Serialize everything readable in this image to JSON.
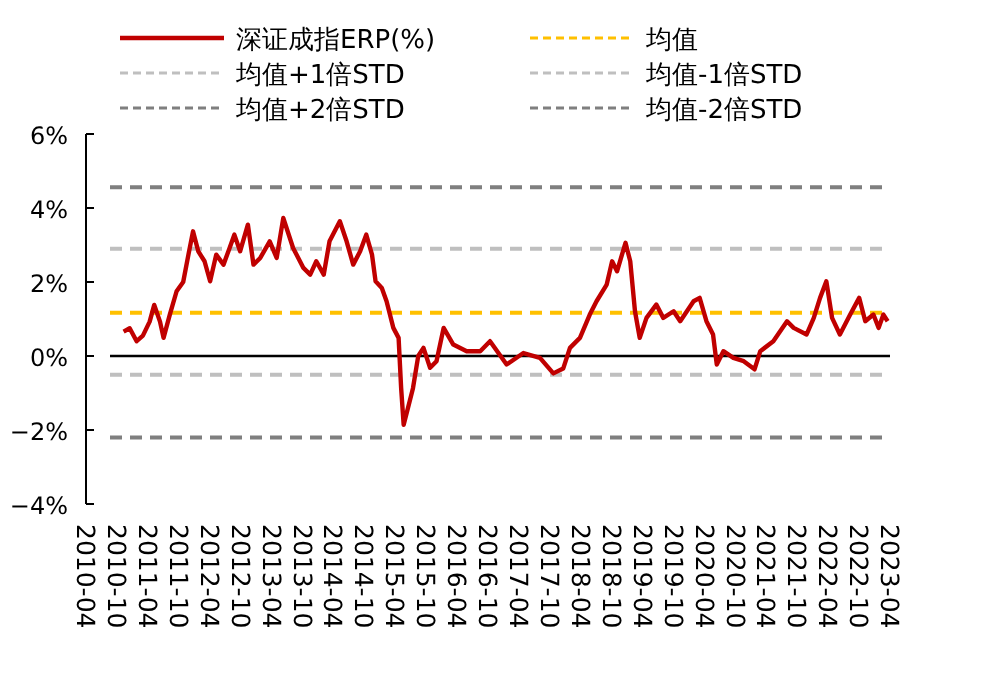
{
  "chart_data": {
    "type": "line",
    "legend": "top",
    "xlim": [
      "2010-04",
      "2023-04"
    ],
    "xticks": [
      "2010-04",
      "2010-10",
      "2011-04",
      "2011-10",
      "2012-04",
      "2012-10",
      "2013-04",
      "2013-10",
      "2014-04",
      "2014-10",
      "2015-04",
      "2015-10",
      "2016-04",
      "2016-10",
      "2017-04",
      "2017-10",
      "2018-04",
      "2018-10",
      "2019-04",
      "2019-10",
      "2020-04",
      "2020-10",
      "2021-04",
      "2021-10",
      "2022-04",
      "2022-10",
      "2023-04"
    ],
    "ylim": [
      -4,
      6
    ],
    "yticks": [
      {
        "value": -4,
        "label": "−4%"
      },
      {
        "value": -2,
        "label": "−2%"
      },
      {
        "value": 0,
        "label": "0%"
      },
      {
        "value": 2,
        "label": "2%"
      },
      {
        "value": 4,
        "label": "4%"
      },
      {
        "value": 6,
        "label": "6%"
      }
    ],
    "ref_lines": [
      {
        "axis": "y",
        "value": 1.17,
        "label": "均值",
        "color": "#ffc000",
        "line_style": "dashed"
      },
      {
        "axis": "y",
        "value": 2.9,
        "label": "均值+1倍STD",
        "color": "#bfbfbf",
        "line_style": "dashed"
      },
      {
        "axis": "y",
        "value": -0.51,
        "label": "均值-1倍STD",
        "color": "#bfbfbf",
        "line_style": "dashed"
      },
      {
        "axis": "y",
        "value": 4.56,
        "label": "均值+2倍STD",
        "color": "#7f7f7f",
        "line_style": "dashed"
      },
      {
        "axis": "y",
        "value": -2.2,
        "label": "均值-2倍STD",
        "color": "#7f7f7f",
        "line_style": "dashed"
      },
      {
        "axis": "y",
        "value": 0,
        "color": "#000000",
        "line_style": "solid"
      }
    ],
    "series": [
      {
        "name": "深证成指ERP(%)",
        "color": "#c00000",
        "x": [
          "2010-11-09",
          "2010-12-15",
          "2011-01-25",
          "2011-03-03",
          "2011-04-12",
          "2011-05-09",
          "2011-06-12",
          "2011-07-03",
          "2011-08-09",
          "2011-09-18",
          "2011-10-27",
          "2011-11-27",
          "2011-12-24",
          "2012-01-24",
          "2012-03-01",
          "2012-04-03",
          "2012-05-09",
          "2012-06-21",
          "2012-07-27",
          "2012-08-24",
          "2012-09-27",
          "2012-11-12",
          "2012-12-15",
          "2013-01-24",
          "2013-03-21",
          "2013-05-01",
          "2013-06-09",
          "2013-08-06",
          "2013-10-06",
          "2013-11-15",
          "2013-12-21",
          "2014-02-03",
          "2014-03-09",
          "2014-05-09",
          "2014-06-18",
          "2014-07-27",
          "2014-09-06",
          "2014-10-12",
          "2014-11-15",
          "2014-12-06",
          "2015-01-12",
          "2015-02-09",
          "2015-03-21",
          "2015-04-21",
          "2015-05-06",
          "2015-05-21",
          "2015-06-15",
          "2015-07-15",
          "2015-08-15",
          "2015-09-15",
          "2015-10-24",
          "2015-12-01",
          "2016-01-12",
          "2016-03-09",
          "2016-05-27",
          "2016-08-15",
          "2016-10-12",
          "2017-01-18",
          "2017-04-27",
          "2017-08-03",
          "2017-10-21",
          "2017-12-18",
          "2018-01-27",
          "2018-03-27",
          "2018-05-24",
          "2018-07-03",
          "2018-09-01",
          "2018-10-03",
          "2018-11-01",
          "2018-12-21",
          "2019-01-18",
          "2019-02-15",
          "2019-03-15",
          "2019-04-24",
          "2019-06-21",
          "2019-08-01",
          "2019-10-01",
          "2019-11-09",
          "2020-01-27",
          "2020-03-03",
          "2020-04-12",
          "2020-05-21",
          "2020-06-12",
          "2020-07-21",
          "2020-09-18",
          "2020-11-18",
          "2021-01-21",
          "2021-02-24",
          "2021-05-12",
          "2021-08-01",
          "2021-09-09",
          "2021-11-24",
          "2022-01-06",
          "2022-02-12",
          "2022-03-21",
          "2022-04-24",
          "2022-06-09",
          "2022-08-09",
          "2022-10-01",
          "2022-11-06",
          "2022-12-24",
          "2023-01-24",
          "2023-02-21",
          "2023-03-18"
        ],
        "values": [
          0.66,
          0.75,
          0.4,
          0.55,
          0.93,
          1.38,
          0.93,
          0.49,
          1.12,
          1.75,
          2.0,
          2.74,
          3.37,
          2.83,
          2.56,
          2.02,
          2.74,
          2.47,
          2.92,
          3.28,
          2.83,
          3.55,
          2.47,
          2.65,
          3.1,
          2.65,
          3.73,
          2.92,
          2.38,
          2.2,
          2.56,
          2.2,
          3.1,
          3.64,
          3.1,
          2.47,
          2.83,
          3.28,
          2.74,
          2.02,
          1.84,
          1.48,
          0.76,
          0.49,
          -0.87,
          -1.86,
          -1.41,
          -0.87,
          0.0,
          0.22,
          -0.32,
          -0.14,
          0.76,
          0.31,
          0.13,
          0.13,
          0.4,
          -0.23,
          0.08,
          -0.05,
          -0.47,
          -0.34,
          0.22,
          0.49,
          1.12,
          1.48,
          1.93,
          2.56,
          2.29,
          3.06,
          2.56,
          1.21,
          0.49,
          1.03,
          1.39,
          1.03,
          1.21,
          0.94,
          1.48,
          1.57,
          0.94,
          0.58,
          -0.23,
          0.13,
          -0.05,
          -0.14,
          -0.36,
          0.13,
          0.4,
          0.94,
          0.76,
          0.58,
          1.03,
          1.57,
          2.02,
          1.03,
          0.58,
          1.12,
          1.57,
          0.94,
          1.12,
          0.76,
          1.12,
          0.94
        ]
      }
    ]
  }
}
